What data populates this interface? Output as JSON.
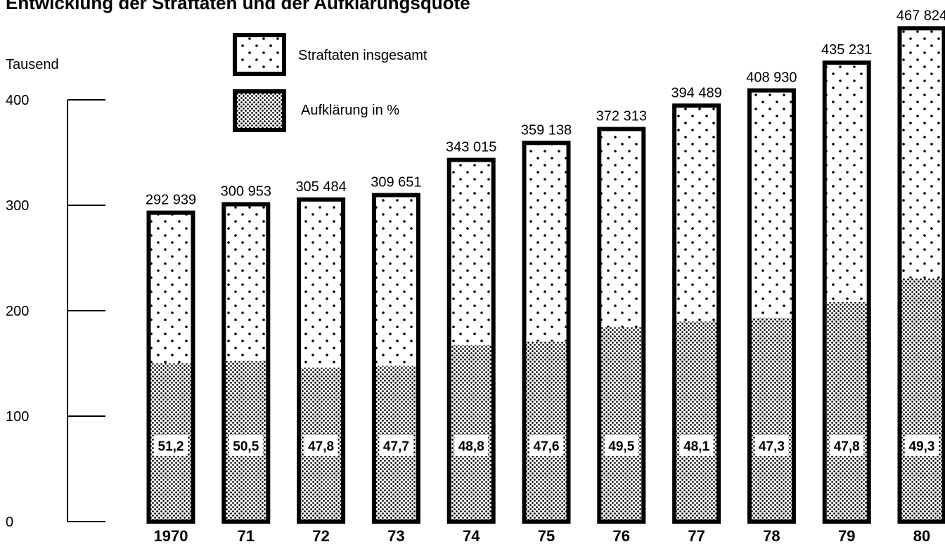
{
  "chart_data": {
    "type": "bar",
    "title": "Entwicklung der Straftaten und der Aufklärungsquote",
    "ylabel": "Tausend",
    "ylim": [
      0,
      400
    ],
    "yticks": [
      "0",
      "100",
      "200",
      "300",
      "400"
    ],
    "categories": [
      "1970",
      "71",
      "72",
      "73",
      "74",
      "75",
      "76",
      "77",
      "78",
      "79",
      "80"
    ],
    "series": [
      {
        "name": "Straftaten insgesamt",
        "values": [
          292939,
          300953,
          305484,
          309651,
          343015,
          359138,
          372313,
          394489,
          408930,
          435231,
          467824
        ],
        "labels": [
          "292 939",
          "300 953",
          "305 484",
          "309 651",
          "343 015",
          "359 138",
          "372 313",
          "394 489",
          "408 930",
          "435 231",
          "467 824"
        ]
      },
      {
        "name": "Aufklärung in %",
        "values": [
          51.2,
          50.5,
          47.8,
          47.7,
          48.8,
          47.6,
          49.5,
          48.1,
          47.3,
          47.8,
          49.3
        ],
        "labels": [
          "51,2",
          "50,5",
          "47,8",
          "47,7",
          "48,8",
          "47,6",
          "49,5",
          "48,1",
          "47,3",
          "47,8",
          "49,3"
        ]
      }
    ],
    "legend_position": "top-left",
    "grid": false,
    "colors": {
      "bar_outline": "#000000",
      "background": "#ffffff",
      "dot": "#000000"
    }
  }
}
